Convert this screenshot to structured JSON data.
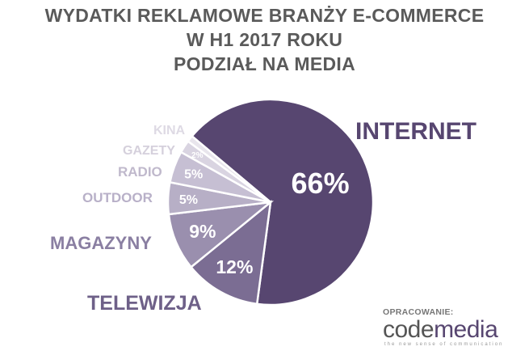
{
  "title_lines": [
    "WYDATKI REKLAMOWE BRANŻY E-COMMERCE",
    "W H1 2017 ROKU",
    "PODZIAŁ NA MEDIA"
  ],
  "chart_data": {
    "type": "pie",
    "title": "WYDATKI REKLAMOWE BRANŻY E-COMMERCE W H1 2017 ROKU PODZIAŁ NA MEDIA",
    "slices": [
      {
        "label": "INTERNET",
        "value": 66,
        "value_label": "66%",
        "color": "#574670",
        "label_color": "#574670"
      },
      {
        "label": "TELEWIZJA",
        "value": 12,
        "value_label": "12%",
        "color": "#7b6d93",
        "label_color": "#6e6088"
      },
      {
        "label": "MAGAZYNY",
        "value": 9,
        "value_label": "9%",
        "color": "#9a8fae",
        "label_color": "#8a7fa2"
      },
      {
        "label": "OUTDOOR",
        "value": 5,
        "value_label": "5%",
        "color": "#b7afc6",
        "label_color": "#b8b0c8"
      },
      {
        "label": "RADIO",
        "value": 5,
        "value_label": "5%",
        "color": "#c6bfd3",
        "label_color": "#c0b9cc"
      },
      {
        "label": "GAZETY",
        "value": 2,
        "value_label": "2%",
        "color": "#d9d4e1",
        "label_color": "#d5d0dc"
      },
      {
        "label": "KINA",
        "value": 1,
        "value_label": "",
        "color": "#e8e5ec",
        "label_color": "#dedae4"
      }
    ]
  },
  "credit": {
    "label": "OPRACOWANIE:",
    "logo_part1": "code",
    "logo_part2": "media",
    "tagline": "the new sense of communication"
  }
}
